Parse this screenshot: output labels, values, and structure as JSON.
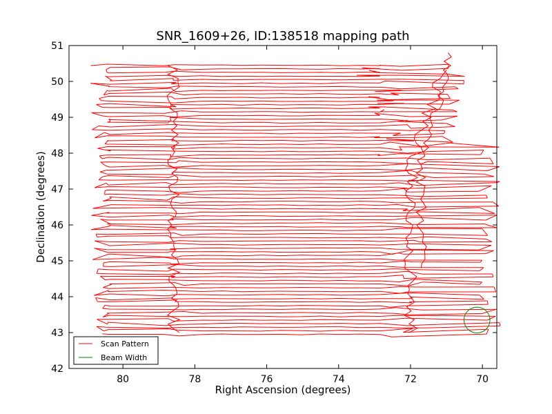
{
  "chart_data": {
    "type": "line",
    "title": "SNR_1609+26, ID:138518 mapping path",
    "xlabel": "Right Ascension (degrees)",
    "ylabel": "Declination (degrees)",
    "xlim": [
      81.5,
      69.6
    ],
    "ylim": [
      42,
      51
    ],
    "x_inverted": true,
    "xticks": [
      80,
      78,
      76,
      74,
      72,
      70
    ],
    "yticks": [
      42,
      43,
      44,
      45,
      46,
      47,
      48,
      49,
      50,
      51
    ],
    "grid": false,
    "legend_position": "lower-left",
    "series": [
      {
        "name": "Scan Pattern",
        "color": "#ff0000",
        "pattern": "raster",
        "ra_range": [
          80.7,
          69.8
        ],
        "dec_range": [
          42.95,
          50.45
        ],
        "dec_step": 0.1
      },
      {
        "name": "Beam Width",
        "color": "#008000",
        "shape": "circle",
        "center": [
          70.15,
          43.35
        ],
        "radius_deg": 0.36
      }
    ]
  }
}
